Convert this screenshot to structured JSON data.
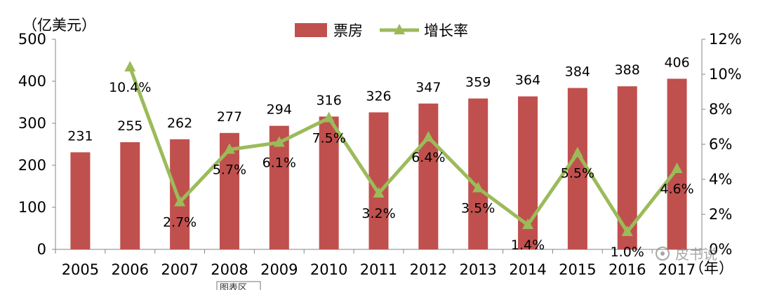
{
  "chart_data": {
    "type": "bar+line",
    "categories": [
      "2005",
      "2006",
      "2007",
      "2008",
      "2009",
      "2010",
      "2011",
      "2012",
      "2013",
      "2014",
      "2015",
      "2016",
      "2017"
    ],
    "series": [
      {
        "name": "票房",
        "type": "bar",
        "axis": "left",
        "color": "#c0504d",
        "values": [
          231,
          255,
          262,
          277,
          294,
          316,
          326,
          347,
          359,
          364,
          384,
          388,
          406
        ],
        "labels": [
          "231",
          "255",
          "262",
          "277",
          "294",
          "316",
          "326",
          "347",
          "359",
          "364",
          "384",
          "388",
          "406"
        ]
      },
      {
        "name": "增长率",
        "type": "line",
        "axis": "right",
        "color": "#9bbb59",
        "values": [
          null,
          10.4,
          2.7,
          5.7,
          6.1,
          7.5,
          3.2,
          6.4,
          3.5,
          1.4,
          5.5,
          1.0,
          4.6
        ],
        "labels": [
          "",
          "10.4%",
          "2.7%",
          "5.7%",
          "6.1%",
          "7.5%",
          "3.2%",
          "6.4%",
          "3.5%",
          "1.4%",
          "5.5%",
          "1.0%",
          "4.6%"
        ]
      }
    ],
    "y_left": {
      "unit": "（亿美元）",
      "ylim": [
        0,
        500
      ],
      "ticks": [
        "0",
        "100",
        "200",
        "300",
        "400",
        "500"
      ]
    },
    "y_right": {
      "ylim": [
        0,
        12
      ],
      "ticks": [
        "0%",
        "2%",
        "4%",
        "6%",
        "8%",
        "10%",
        "12%"
      ]
    },
    "x_unit": "（年）",
    "legend": {
      "position": "top-center",
      "items": [
        "票房",
        "增长率"
      ]
    },
    "grid": false
  },
  "watermark": {
    "text": "皮书说"
  },
  "tooltip": {
    "text": "图表区"
  }
}
